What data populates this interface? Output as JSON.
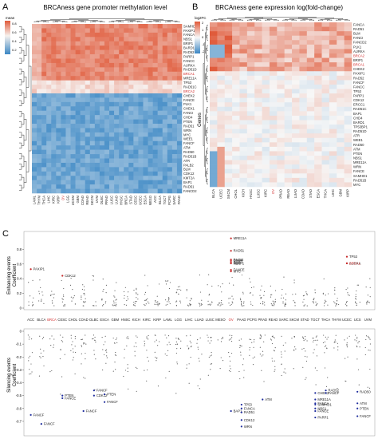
{
  "panels": {
    "a": {
      "letter": "A",
      "title": "BRCAness gene promoter methylation level",
      "legend_title": "mean",
      "legend_ticks": [
        "0.8",
        "0.6",
        "0.4",
        "0.2"
      ],
      "genes": [
        "SAMHD1",
        "PAXIP1",
        "FANCA",
        "NBS1",
        "BRIP1",
        "BARD1",
        "RAD52",
        "PARP1",
        "FANCC",
        "AURKA",
        "RAD51D",
        "BRCA1",
        "MRE11A",
        "TP53",
        "RAD51C",
        "BRCA2",
        "CHEK2",
        "FANCE",
        "PLK1",
        "CHEK1",
        "FANCI",
        "CHD4",
        "PTEN",
        "RAD51",
        "WRN",
        "MYC",
        "WEE1",
        "FANCF",
        "ATM",
        "RAD50",
        "RAD51B",
        "ATR",
        "PALB2",
        "BLM",
        "CDK12",
        "KMT2A",
        "BAP1",
        "RAD51",
        "FANCD2"
      ],
      "highlight_genes": [
        "BRCA1",
        "BRCA2"
      ],
      "cancers": [
        "LAML",
        "THYM",
        "THCA",
        "LIHC",
        "KIRC",
        "KIRP",
        "OV",
        "LGG",
        "UCSM",
        "GBM",
        "COAD",
        "READ",
        "SKCM",
        "UVM",
        "DLBC",
        "PRAD",
        "LUSC",
        "LUAD",
        "HNSC",
        "BRCA",
        "STAD",
        "CESC",
        "UCEC",
        "ESCA",
        "MESO",
        "ACC",
        "BLCA",
        "TGCT",
        "PCPG",
        "SARC",
        "PAAD"
      ],
      "highlight_cancers": [
        "OV"
      ]
    },
    "b": {
      "letter": "B",
      "title": "BRCAness gene expression log(fold-change)",
      "legend_title": "log2FC",
      "legend_ticks": [
        "2",
        "1",
        "0",
        "-1",
        "-2"
      ],
      "ylabel": "Genes",
      "genes": [
        "FANCA",
        "RAD51",
        "BLM",
        "FANCI",
        "FANCD2",
        "PLK1",
        "AURKA",
        "BRCA2",
        "BRIP1",
        "BRCA1",
        "CHEK2",
        "PAXIP1",
        "RAD52",
        "FANCF",
        "FANCC",
        "TP53",
        "PARP1",
        "CDK12",
        "ERCC1",
        "RAD51C",
        "BAP1",
        "CHD4",
        "BARD1",
        "TP53BP1",
        "RAD51D",
        "ATR",
        "WEE1",
        "RAD50",
        "ATM",
        "PTEN",
        "NBS1",
        "MRE11A",
        "WRN",
        "FANCE",
        "SAMHD1",
        "RAD51B",
        "MYC"
      ],
      "highlight_genes": [
        "BRCA2",
        "BRCA1"
      ],
      "cancers": [
        "BLCA",
        "UCEC",
        "SKCM",
        "CHOL",
        "KICH",
        "HNSC",
        "LUSC",
        "KIRC",
        "OV",
        "PRAD",
        "READ",
        "LUAD",
        "COAD",
        "STAD",
        "ESCA",
        "THCA",
        "LIHC",
        "GBM",
        "KIRP"
      ],
      "highlight_cancers": [
        "OV"
      ]
    },
    "c": {
      "letter": "C",
      "enh_ylabel": "Enhancing events",
      "enh_ylabel2": "Coefficient",
      "sil_ylabel": "Silencing events",
      "sil_ylabel2": "Coefficient",
      "enh_ticks": [
        "0.8",
        "0.6",
        "0.4",
        "0.2",
        "0"
      ],
      "sil_ticks": [
        "0",
        "-0.1",
        "-0.2",
        "-0.3",
        "-0.4",
        "-0.5",
        "-0.6",
        "-0.7"
      ],
      "cancers": [
        "ACC",
        "BLCA",
        "BRCA",
        "CESC",
        "CHOL",
        "COAD",
        "DLBC",
        "ESCA",
        "GBM",
        "HNSC",
        "KICH",
        "KIRC",
        "KIRP",
        "LAML",
        "LGG",
        "LIHC",
        "LUAD",
        "LUSC",
        "MESO",
        "OV",
        "PAAD",
        "PCPG",
        "PRAD",
        "READ",
        "SARC",
        "SKCM",
        "STAD",
        "TGCT",
        "THCA",
        "THYM",
        "UCEC",
        "UCS",
        "UVM"
      ],
      "highlight_cancers": [
        "BRCA",
        "OV"
      ],
      "enh_labels": [
        {
          "text": "PAXIP1",
          "cancer": "ACC",
          "value": 0.53
        },
        {
          "text": "CDK12",
          "cancer": "CESC",
          "value": 0.44
        },
        {
          "text": "MRE11A",
          "cancer": "OV",
          "value": 0.95
        },
        {
          "text": "RAD51",
          "cancer": "OV",
          "value": 0.78
        },
        {
          "text": "PALB2",
          "cancer": "OV",
          "value": 0.66
        },
        {
          "text": "CHD4",
          "cancer": "OV",
          "value": 0.65
        },
        {
          "text": "BRIP1",
          "cancer": "OV",
          "value": 0.63
        },
        {
          "text": "PARP1",
          "cancer": "OV",
          "value": 0.61
        },
        {
          "text": "NBN",
          "cancer": "OV",
          "value": 0.61
        },
        {
          "text": "FANCE",
          "cancer": "OV",
          "value": 0.52
        },
        {
          "text": "MYC",
          "cancer": "OV",
          "value": 0.5
        },
        {
          "text": "TP53",
          "cancer": "UCEC",
          "value": 0.7
        },
        {
          "text": "AURKA",
          "cancer": "UCEC",
          "value": 0.61
        },
        {
          "text": "BRCA1",
          "cancer": "UCEC",
          "value": 0.61
        }
      ],
      "sil_labels": [
        {
          "text": "FANCF",
          "cancer": "ACC",
          "value": -0.65
        },
        {
          "text": "FANCF",
          "cancer": "BLCA",
          "value": -0.72
        },
        {
          "text": "PTEN",
          "cancer": "CESC",
          "value": -0.5
        },
        {
          "text": "FANCE",
          "cancer": "CESC",
          "value": -0.52
        },
        {
          "text": "FANCF",
          "cancer": "COAD",
          "value": -0.62
        },
        {
          "text": "FANCF",
          "cancer": "DLBC",
          "value": -0.46
        },
        {
          "text": "CDK12",
          "cancer": "DLBC",
          "value": -0.5
        },
        {
          "text": "PTEN",
          "cancer": "ESCA",
          "value": -0.49
        },
        {
          "text": "FANCF",
          "cancer": "ESCA",
          "value": -0.55
        },
        {
          "text": "TP53",
          "cancer": "PAAD",
          "value": -0.57
        },
        {
          "text": "FANCA",
          "cancer": "PAAD",
          "value": -0.6
        },
        {
          "text": "BAP1",
          "cancer": "OV",
          "value": -0.62
        },
        {
          "text": "RAD51",
          "cancer": "PAAD",
          "value": -0.63
        },
        {
          "text": "CDK12",
          "cancer": "PAAD",
          "value": -0.69
        },
        {
          "text": "WRN",
          "cancer": "PAAD",
          "value": -0.74
        },
        {
          "text": "ATM",
          "cancer": "PRAD",
          "value": -0.53
        },
        {
          "text": "CHEK2",
          "cancer": "TGCT",
          "value": -0.48
        },
        {
          "text": "MRE11A",
          "cancer": "TGCT",
          "value": -0.53
        },
        {
          "text": "FANCA",
          "cancer": "TGCT",
          "value": -0.56
        },
        {
          "text": "SAMHD1",
          "cancer": "TGCT",
          "value": -0.57
        },
        {
          "text": "NBS1",
          "cancer": "TGCT",
          "value": -0.6
        },
        {
          "text": "FANCE",
          "cancer": "TGCT",
          "value": -0.62
        },
        {
          "text": "PARP1",
          "cancer": "TGCT",
          "value": -0.67
        },
        {
          "text": "RAD52",
          "cancer": "THCA",
          "value": -0.46
        },
        {
          "text": "FANCF",
          "cancer": "THCA",
          "value": -0.48
        },
        {
          "text": "RAD50",
          "cancer": "UCS",
          "value": -0.47
        },
        {
          "text": "ATM",
          "cancer": "UCS",
          "value": -0.56
        },
        {
          "text": "PTEN",
          "cancer": "UCS",
          "value": -0.6
        },
        {
          "text": "FANCF",
          "cancer": "UCS",
          "value": -0.66
        }
      ]
    }
  },
  "colors": {
    "high": "#e05a3a",
    "mid": "#f7f7f7",
    "low": "#3b87c4",
    "enh_point": "#c62828",
    "sil_point": "#1f2d9e",
    "highlight": "#d32f2f"
  }
}
